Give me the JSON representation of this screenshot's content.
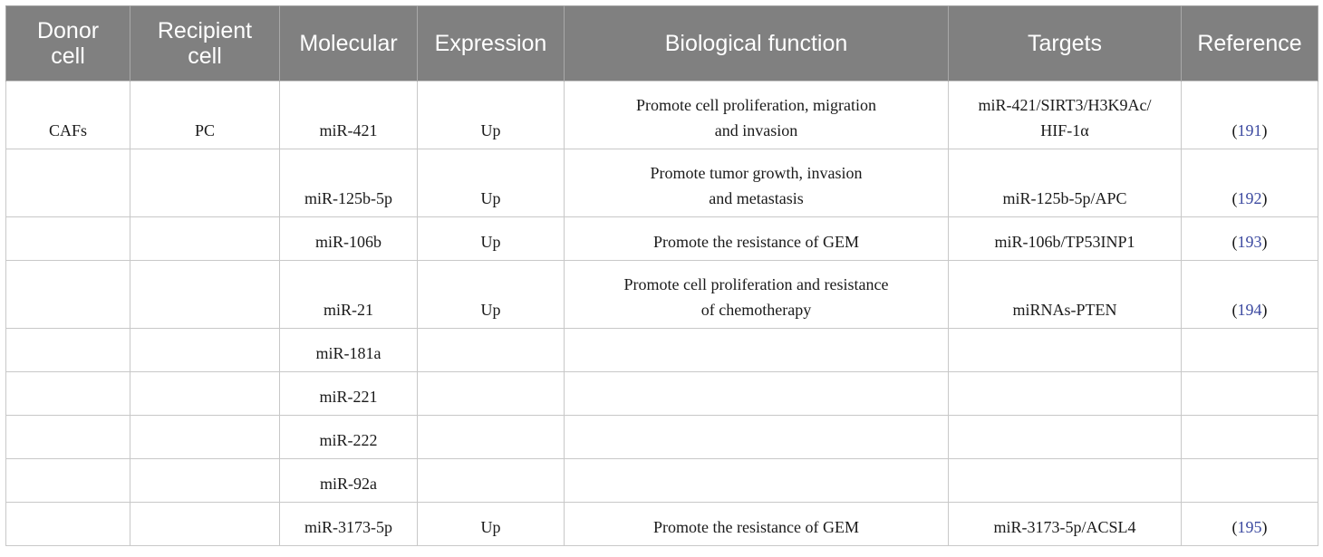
{
  "table": {
    "headers": [
      "Donor\ncell",
      "Recipient\ncell",
      "Molecular",
      "Expression",
      "Biological function",
      "Targets",
      "Reference"
    ],
    "rows": [
      {
        "donor": "CAFs",
        "recipient": "PC",
        "molecular": "miR-421",
        "expression": "Up",
        "function_line1": "Promote cell proliferation, migration",
        "function_line2": "and invasion",
        "targets_line1": "miR-421/SIRT3/H3K9Ac/",
        "targets_line2": "HIF-1α",
        "reference": "191"
      },
      {
        "donor": "",
        "recipient": "",
        "molecular": "miR-125b-5p",
        "expression": "Up",
        "function_line1": "Promote tumor growth, invasion",
        "function_line2": "and metastasis",
        "targets_line1": "",
        "targets_line2": "miR-125b-5p/APC",
        "reference": "192"
      },
      {
        "donor": "",
        "recipient": "",
        "molecular": "miR-106b",
        "expression": "Up",
        "function_line1": "",
        "function_line2": "Promote the resistance of GEM",
        "targets_line1": "",
        "targets_line2": "miR-106b/TP53INP1",
        "reference": "193"
      },
      {
        "donor": "",
        "recipient": "",
        "molecular": "miR-21",
        "expression": "Up",
        "function_line1": "Promote cell proliferation and resistance",
        "function_line2": "of chemotherapy",
        "targets_line1": "",
        "targets_line2": "miRNAs-PTEN",
        "reference": "194"
      },
      {
        "donor": "",
        "recipient": "",
        "molecular": "miR-181a",
        "expression": "",
        "function_line1": "",
        "function_line2": "",
        "targets_line1": "",
        "targets_line2": "",
        "reference": ""
      },
      {
        "donor": "",
        "recipient": "",
        "molecular": "miR-221",
        "expression": "",
        "function_line1": "",
        "function_line2": "",
        "targets_line1": "",
        "targets_line2": "",
        "reference": ""
      },
      {
        "donor": "",
        "recipient": "",
        "molecular": "miR-222",
        "expression": "",
        "function_line1": "",
        "function_line2": "",
        "targets_line1": "",
        "targets_line2": "",
        "reference": ""
      },
      {
        "donor": "",
        "recipient": "",
        "molecular": "miR-92a",
        "expression": "",
        "function_line1": "",
        "function_line2": "",
        "targets_line1": "",
        "targets_line2": "",
        "reference": ""
      },
      {
        "donor": "",
        "recipient": "",
        "molecular": "miR-3173-5p",
        "expression": "Up",
        "function_line1": "",
        "function_line2": "Promote the resistance of GEM",
        "targets_line1": "",
        "targets_line2": "miR-3173-5p/ACSL4",
        "reference": "195"
      }
    ]
  },
  "colors": {
    "header_bg": "#808080",
    "header_text": "#ffffff",
    "grid": "#c8c8c8",
    "reference_link": "#3c4aa0"
  }
}
